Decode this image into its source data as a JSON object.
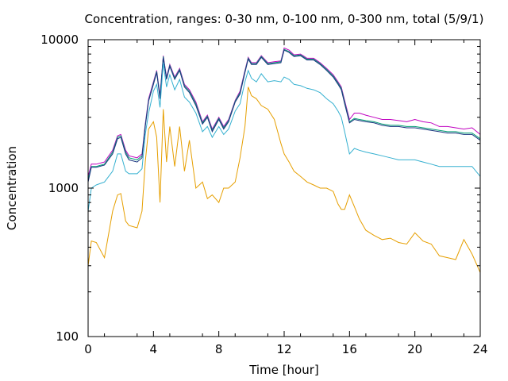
{
  "chart_data": {
    "type": "line",
    "title": "Concentration, ranges: 0-30 nm, 0-100 nm, 0-300 nm, total (5/9/1)",
    "xlabel": "Time [hour]",
    "ylabel": "Concentration",
    "xlim": [
      0,
      24
    ],
    "ylim": [
      100,
      10000
    ],
    "yscale": "log",
    "grid": false,
    "legend": "none",
    "x_ticks": [
      "0",
      "4",
      "8",
      "12",
      "16",
      "20",
      "24"
    ],
    "x_tick_values": [
      0,
      4,
      8,
      12,
      16,
      20,
      24
    ],
    "y_ticks": [
      "100",
      "1000",
      "10000"
    ],
    "y_tick_values": [
      100,
      1000,
      10000
    ],
    "x": [
      0,
      0.2,
      0.5,
      1,
      1.5,
      1.8,
      2,
      2.3,
      2.5,
      3,
      3.3,
      3.5,
      3.7,
      4,
      4.2,
      4.4,
      4.6,
      4.8,
      5,
      5.3,
      5.6,
      5.9,
      6.2,
      6.6,
      7,
      7.3,
      7.6,
      8,
      8.3,
      8.6,
      9,
      9.3,
      9.6,
      9.8,
      10,
      10.3,
      10.6,
      11,
      11.4,
      11.8,
      12,
      12.3,
      12.6,
      13,
      13.4,
      13.8,
      14.2,
      14.6,
      15,
      15.3,
      15.5,
      15.7,
      16,
      16.3,
      16.6,
      17,
      17.5,
      18,
      18.5,
      19,
      19.5,
      20,
      20.5,
      21,
      21.5,
      22,
      22.5,
      23,
      23.5,
      24
    ],
    "series": [
      {
        "color": "#c000c0",
        "values": [
          1200,
          1450,
          1450,
          1500,
          1800,
          2250,
          2300,
          1800,
          1650,
          1600,
          1700,
          2700,
          4000,
          5200,
          6200,
          4200,
          7800,
          5600,
          6800,
          5600,
          6400,
          5000,
          4600,
          3800,
          2800,
          3100,
          2500,
          3000,
          2600,
          2900,
          3900,
          4500,
          6200,
          7600,
          7000,
          7000,
          7800,
          7000,
          7100,
          7200,
          8800,
          8500,
          7900,
          8000,
          7500,
          7500,
          7000,
          6400,
          5800,
          5200,
          4800,
          3900,
          2900,
          3200,
          3200,
          3100,
          3000,
          2900,
          2900,
          2850,
          2800,
          2900,
          2800,
          2750,
          2600,
          2600,
          2550,
          2500,
          2550,
          2300
        ]
      },
      {
        "color": "#009e73",
        "values": [
          1150,
          1400,
          1400,
          1450,
          1750,
          2200,
          2250,
          1750,
          1600,
          1550,
          1650,
          2650,
          3900,
          5100,
          6100,
          4100,
          7700,
          5500,
          6700,
          5500,
          6300,
          4900,
          4500,
          3700,
          2750,
          3050,
          2450,
          2950,
          2550,
          2850,
          3850,
          4400,
          6100,
          7500,
          6900,
          6900,
          7700,
          6900,
          7000,
          7100,
          8600,
          8300,
          7800,
          7900,
          7400,
          7400,
          6900,
          6300,
          5700,
          5100,
          4700,
          3800,
          2800,
          2950,
          2900,
          2850,
          2800,
          2700,
          2650,
          2650,
          2600,
          2600,
          2550,
          2500,
          2450,
          2400,
          2400,
          2350,
          2350,
          2150
        ]
      },
      {
        "color": "#1a3580",
        "values": [
          1100,
          1380,
          1380,
          1430,
          1700,
          2150,
          2200,
          1700,
          1550,
          1500,
          1600,
          2600,
          3850,
          5000,
          6000,
          4000,
          7600,
          5400,
          6600,
          5400,
          6200,
          4800,
          4400,
          3600,
          2700,
          3000,
          2400,
          2900,
          2500,
          2800,
          3800,
          4300,
          6000,
          7400,
          6800,
          6800,
          7600,
          6800,
          6900,
          7000,
          8500,
          8200,
          7700,
          7800,
          7300,
          7300,
          6800,
          6200,
          5600,
          5000,
          4600,
          3700,
          2750,
          2900,
          2850,
          2800,
          2750,
          2650,
          2600,
          2600,
          2550,
          2550,
          2500,
          2450,
          2400,
          2350,
          2350,
          2300,
          2300,
          2100
        ]
      },
      {
        "color": "#35b0d0",
        "values": [
          700,
          1000,
          1050,
          1100,
          1300,
          1700,
          1700,
          1300,
          1250,
          1250,
          1350,
          2300,
          3200,
          4500,
          5000,
          3500,
          7000,
          4800,
          5800,
          4600,
          5400,
          4100,
          3800,
          3200,
          2400,
          2600,
          2200,
          2600,
          2300,
          2500,
          3300,
          3700,
          5200,
          6200,
          5500,
          5200,
          5900,
          5200,
          5300,
          5200,
          5600,
          5400,
          5000,
          4900,
          4700,
          4600,
          4400,
          4000,
          3700,
          3300,
          3000,
          2400,
          1700,
          1850,
          1800,
          1750,
          1700,
          1650,
          1600,
          1550,
          1550,
          1550,
          1500,
          1450,
          1400,
          1400,
          1400,
          1400,
          1400,
          1200
        ]
      },
      {
        "color": "#e69f00",
        "values": [
          300,
          440,
          430,
          340,
          700,
          900,
          920,
          600,
          560,
          540,
          700,
          1500,
          2500,
          2800,
          2200,
          800,
          3400,
          1500,
          2600,
          1400,
          2600,
          1300,
          2100,
          1000,
          1100,
          850,
          900,
          800,
          1000,
          1000,
          1100,
          1600,
          2600,
          4800,
          4200,
          4000,
          3600,
          3400,
          2900,
          2000,
          1700,
          1500,
          1300,
          1200,
          1100,
          1050,
          1000,
          1000,
          950,
          780,
          720,
          720,
          900,
          750,
          620,
          520,
          480,
          450,
          460,
          430,
          420,
          500,
          440,
          420,
          350,
          340,
          330,
          450,
          360,
          270
        ]
      }
    ]
  }
}
